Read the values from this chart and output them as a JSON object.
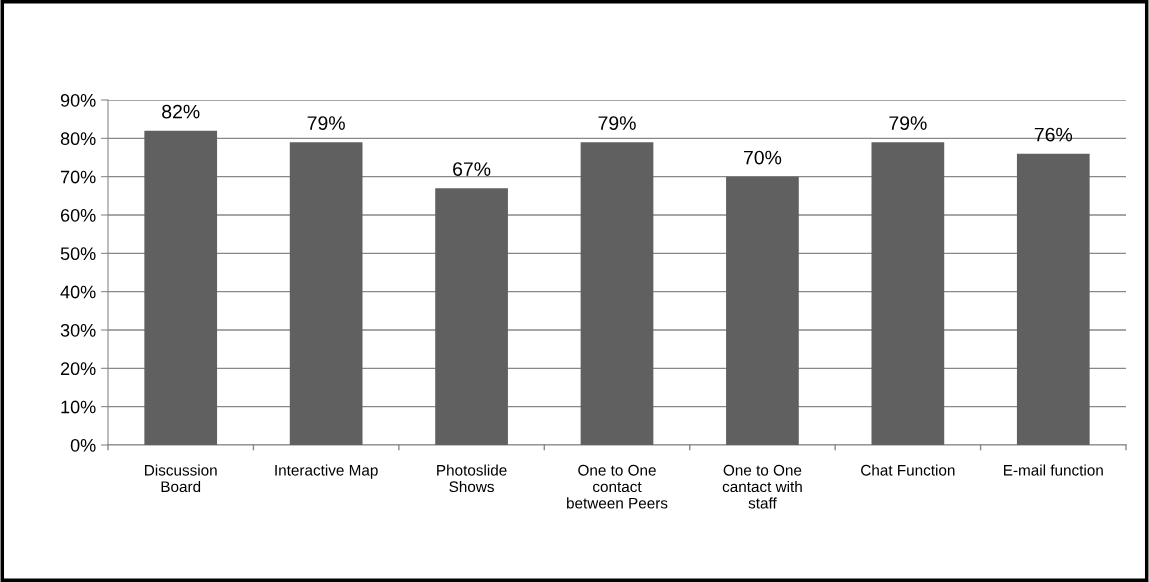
{
  "chart_data": {
    "type": "bar",
    "categories": [
      "Discussion\nBoard",
      "Interactive Map",
      "Photoslide\nShows",
      "One to One\ncontact\nbetween Peers",
      "One to One\ncantact with\nstaff",
      "Chat Function",
      "E-mail function"
    ],
    "values": [
      82,
      79,
      67,
      79,
      70,
      79,
      76
    ],
    "value_labels": [
      "82%",
      "79%",
      "67%",
      "79%",
      "70%",
      "79%",
      "76%"
    ],
    "color": "#606060",
    "ylim": [
      0,
      90
    ],
    "yticks": [
      {
        "value": 0,
        "label": "0%"
      },
      {
        "value": 10,
        "label": "10%"
      },
      {
        "value": 20,
        "label": "20%"
      },
      {
        "value": 30,
        "label": "30%"
      },
      {
        "value": 40,
        "label": "40%"
      },
      {
        "value": 50,
        "label": "50%"
      },
      {
        "value": 60,
        "label": "60%"
      },
      {
        "value": 70,
        "label": "70%"
      },
      {
        "value": 80,
        "label": "80%"
      },
      {
        "value": 90,
        "label": "90%"
      }
    ],
    "grid": "y",
    "legend": false
  }
}
